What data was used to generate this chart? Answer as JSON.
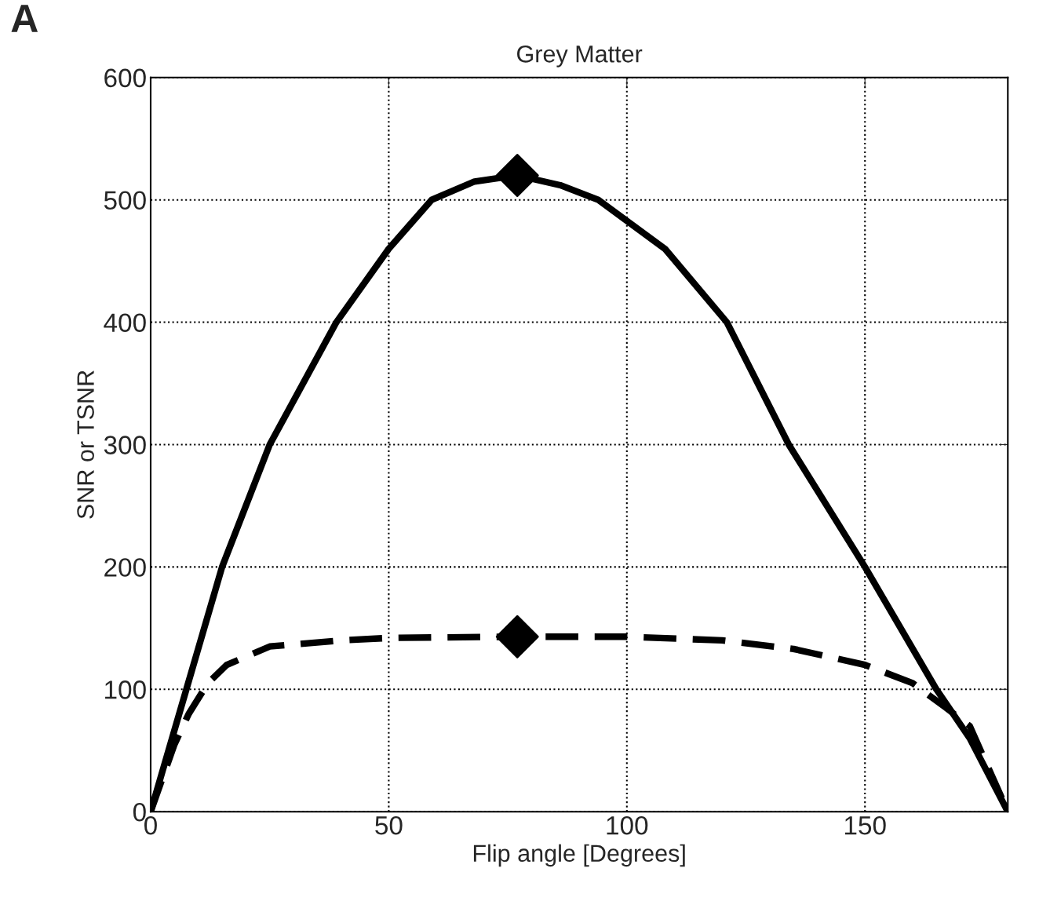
{
  "chart_data": {
    "type": "line",
    "title": "Grey Matter",
    "xlabel": "Flip angle [Degrees]",
    "ylabel": "SNR or TSNR",
    "annotations": [
      "A"
    ],
    "xlim": [
      0,
      180
    ],
    "xticks": [
      0,
      50,
      100,
      150
    ],
    "ylim": [
      0,
      600
    ],
    "yticks": [
      0,
      100,
      200,
      300,
      400,
      500,
      600
    ],
    "grid": true,
    "series": [
      {
        "color": "#000000",
        "line_style": "solid",
        "x": [
          0,
          7.5,
          15,
          25,
          39,
          50,
          59,
          68,
          77,
          86,
          94,
          108,
          121,
          134,
          150,
          165,
          172,
          180
        ],
        "values": [
          0,
          100,
          200,
          300,
          400,
          460,
          500,
          515,
          520,
          512,
          500,
          460,
          400,
          300,
          200,
          100,
          60,
          0
        ]
      },
      {
        "color": "#000000",
        "line_style": "dashed",
        "x": [
          0,
          5,
          8,
          12,
          16,
          25,
          40,
          50,
          77,
          100,
          120,
          135,
          150,
          160,
          167,
          172,
          180
        ],
        "values": [
          0,
          55,
          80,
          105,
          120,
          135,
          140,
          142,
          143,
          143,
          140,
          133,
          120,
          105,
          85,
          70,
          0
        ]
      },
      {
        "type": "scatter",
        "color": "#000000",
        "marker": "diamond",
        "x": [
          77,
          77
        ],
        "values": [
          520,
          143
        ]
      }
    ]
  }
}
